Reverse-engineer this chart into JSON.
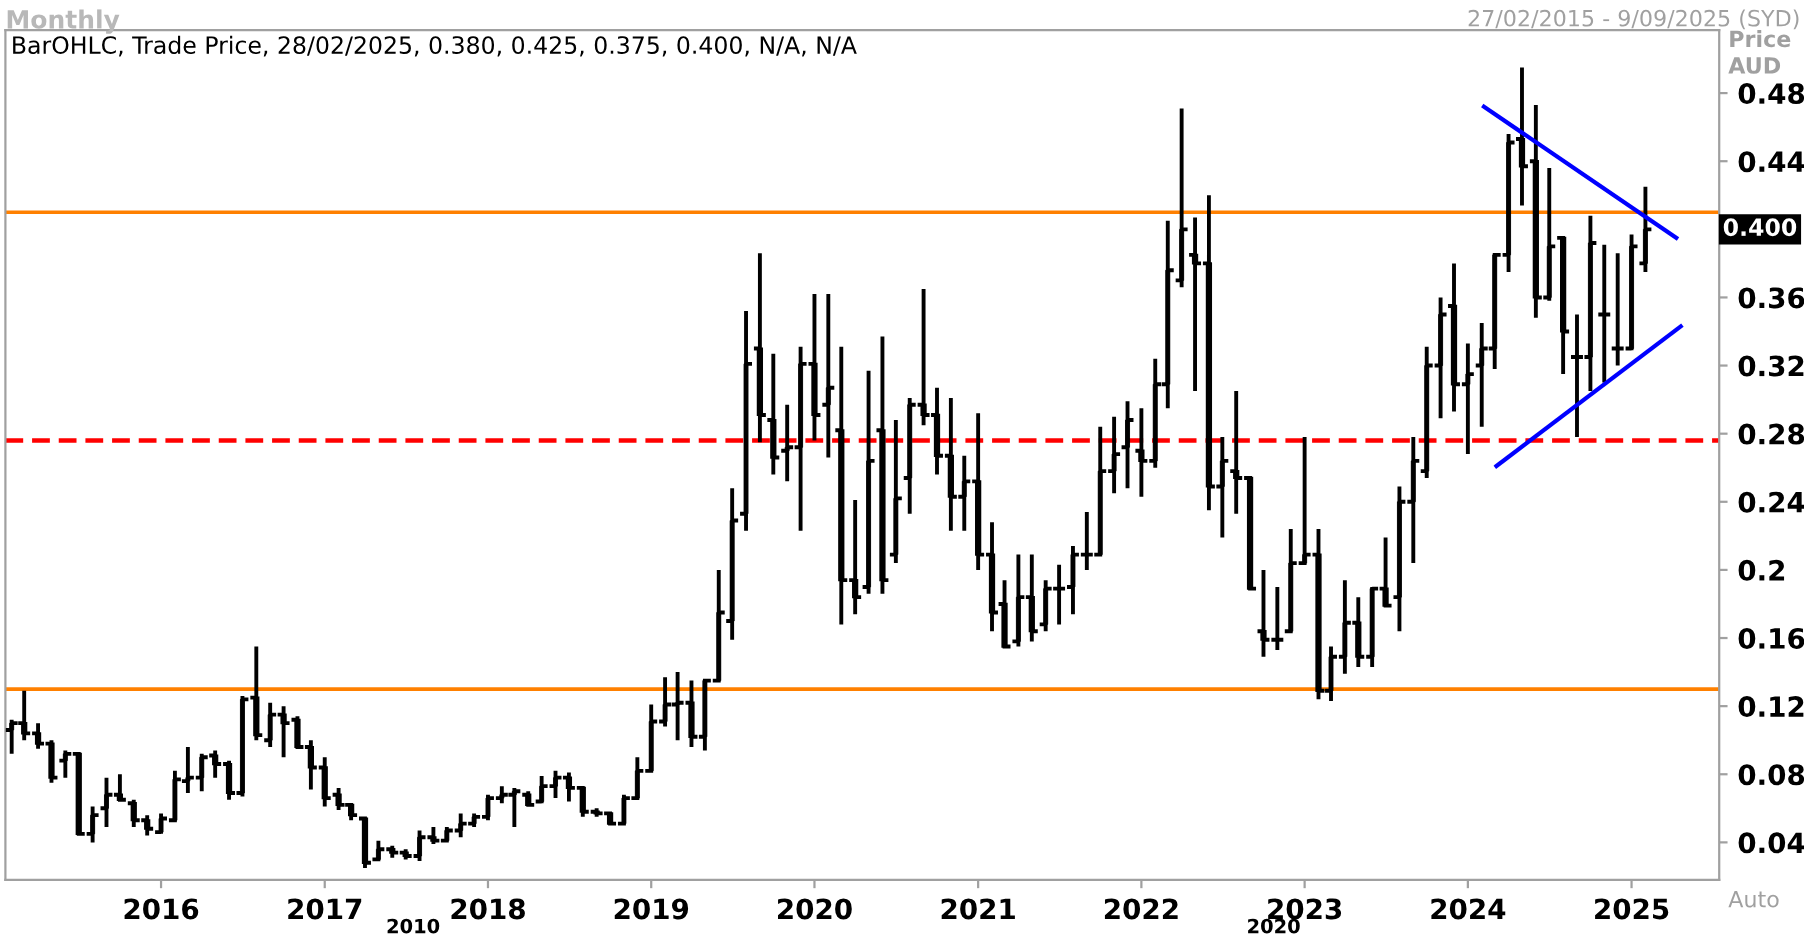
{
  "chart_data": {
    "type": "candlestick",
    "title": "Monthly",
    "subtitle": "BarOHLC, Trade Price, 28/02/2025, 0.380, 0.425, 0.375, 0.400, N/A, N/A",
    "ylabel": "Price\nAUD",
    "color": "#000000",
    "x": [
      "2015-02",
      "2015-03",
      "2015-04",
      "2015-05",
      "2015-06",
      "2015-07",
      "2015-08",
      "2015-09",
      "2015-10",
      "2015-11",
      "2015-12",
      "2016-01",
      "2016-02",
      "2016-03",
      "2016-04",
      "2016-05",
      "2016-06",
      "2016-07",
      "2016-08",
      "2016-09",
      "2016-10",
      "2016-11",
      "2016-12",
      "2017-01",
      "2017-02",
      "2017-03",
      "2017-04",
      "2017-05",
      "2017-06",
      "2017-07",
      "2017-08",
      "2017-09",
      "2017-10",
      "2017-11",
      "2017-12",
      "2018-01",
      "2018-02",
      "2018-03",
      "2018-04",
      "2018-05",
      "2018-06",
      "2018-07",
      "2018-08",
      "2018-09",
      "2018-10",
      "2018-11",
      "2018-12",
      "2019-01",
      "2019-02",
      "2019-03",
      "2019-04",
      "2019-05",
      "2019-06",
      "2019-07",
      "2019-08",
      "2019-09",
      "2019-10",
      "2019-11",
      "2019-12",
      "2020-01",
      "2020-02",
      "2020-03",
      "2020-04",
      "2020-05",
      "2020-06",
      "2020-07",
      "2020-08",
      "2020-09",
      "2020-10",
      "2020-11",
      "2020-12",
      "2021-01",
      "2021-02",
      "2021-03",
      "2021-04",
      "2021-05",
      "2021-06",
      "2021-07",
      "2021-08",
      "2021-09",
      "2021-10",
      "2021-11",
      "2021-12",
      "2022-01",
      "2022-02",
      "2022-03",
      "2022-04",
      "2022-05",
      "2022-06",
      "2022-07",
      "2022-08",
      "2022-09",
      "2022-10",
      "2022-11",
      "2022-12",
      "2023-01",
      "2023-02",
      "2023-03",
      "2023-04",
      "2023-05",
      "2023-06",
      "2023-07",
      "2023-08",
      "2023-09",
      "2023-10",
      "2023-11",
      "2023-12",
      "2024-01",
      "2024-02",
      "2024-03",
      "2024-04",
      "2024-05",
      "2024-06",
      "2024-07",
      "2024-08",
      "2024-09",
      "2024-10",
      "2024-11",
      "2024-12",
      "2025-01",
      "2025-02"
    ],
    "ohlc": [
      [
        0.106,
        0.112,
        0.092,
        0.11
      ],
      [
        0.11,
        0.129,
        0.1,
        0.104
      ],
      [
        0.104,
        0.11,
        0.095,
        0.098
      ],
      [
        0.098,
        0.1,
        0.075,
        0.078
      ],
      [
        0.088,
        0.094,
        0.078,
        0.092
      ],
      [
        0.092,
        0.093,
        0.044,
        0.045
      ],
      [
        0.045,
        0.061,
        0.04,
        0.056
      ],
      [
        0.06,
        0.078,
        0.049,
        0.068
      ],
      [
        0.068,
        0.08,
        0.064,
        0.065
      ],
      [
        0.063,
        0.065,
        0.049,
        0.053
      ],
      [
        0.053,
        0.056,
        0.044,
        0.048
      ],
      [
        0.046,
        0.057,
        0.045,
        0.054
      ],
      [
        0.053,
        0.082,
        0.053,
        0.077
      ],
      [
        0.076,
        0.096,
        0.069,
        0.078
      ],
      [
        0.078,
        0.092,
        0.07,
        0.09
      ],
      [
        0.091,
        0.094,
        0.078,
        0.086
      ],
      [
        0.086,
        0.088,
        0.065,
        0.069
      ],
      [
        0.069,
        0.126,
        0.067,
        0.124
      ],
      [
        0.125,
        0.155,
        0.1,
        0.103
      ],
      [
        0.1,
        0.122,
        0.096,
        0.115
      ],
      [
        0.115,
        0.12,
        0.09,
        0.11
      ],
      [
        0.112,
        0.114,
        0.096,
        0.096
      ],
      [
        0.096,
        0.1,
        0.071,
        0.084
      ],
      [
        0.084,
        0.09,
        0.061,
        0.066
      ],
      [
        0.068,
        0.072,
        0.059,
        0.062
      ],
      [
        0.062,
        0.063,
        0.053,
        0.056
      ],
      [
        0.054,
        0.055,
        0.025,
        0.028
      ],
      [
        0.03,
        0.041,
        0.03,
        0.036
      ],
      [
        0.036,
        0.038,
        0.031,
        0.034
      ],
      [
        0.034,
        0.036,
        0.03,
        0.032
      ],
      [
        0.032,
        0.047,
        0.029,
        0.043
      ],
      [
        0.043,
        0.049,
        0.039,
        0.041
      ],
      [
        0.041,
        0.049,
        0.04,
        0.047
      ],
      [
        0.047,
        0.057,
        0.043,
        0.051
      ],
      [
        0.051,
        0.057,
        0.049,
        0.055
      ],
      [
        0.055,
        0.068,
        0.053,
        0.066
      ],
      [
        0.066,
        0.073,
        0.063,
        0.068
      ],
      [
        0.068,
        0.072,
        0.049,
        0.07
      ],
      [
        0.068,
        0.07,
        0.061,
        0.062
      ],
      [
        0.064,
        0.079,
        0.063,
        0.073
      ],
      [
        0.073,
        0.082,
        0.066,
        0.078
      ],
      [
        0.078,
        0.081,
        0.064,
        0.072
      ],
      [
        0.072,
        0.072,
        0.055,
        0.058
      ],
      [
        0.058,
        0.06,
        0.055,
        0.057
      ],
      [
        0.057,
        0.058,
        0.05,
        0.051
      ],
      [
        0.051,
        0.068,
        0.051,
        0.066
      ],
      [
        0.066,
        0.09,
        0.066,
        0.082
      ],
      [
        0.082,
        0.121,
        0.082,
        0.111
      ],
      [
        0.111,
        0.137,
        0.108,
        0.121
      ],
      [
        0.121,
        0.14,
        0.1,
        0.122
      ],
      [
        0.122,
        0.135,
        0.096,
        0.102
      ],
      [
        0.102,
        0.135,
        0.094,
        0.135
      ],
      [
        0.135,
        0.2,
        0.135,
        0.175
      ],
      [
        0.17,
        0.248,
        0.159,
        0.229
      ],
      [
        0.233,
        0.352,
        0.223,
        0.321
      ],
      [
        0.33,
        0.386,
        0.275,
        0.291
      ],
      [
        0.288,
        0.327,
        0.256,
        0.266
      ],
      [
        0.27,
        0.297,
        0.252,
        0.272
      ],
      [
        0.272,
        0.331,
        0.223,
        0.321
      ],
      [
        0.321,
        0.362,
        0.276,
        0.291
      ],
      [
        0.297,
        0.362,
        0.266,
        0.307
      ],
      [
        0.282,
        0.331,
        0.168,
        0.194
      ],
      [
        0.194,
        0.241,
        0.174,
        0.184
      ],
      [
        0.19,
        0.317,
        0.186,
        0.264
      ],
      [
        0.282,
        0.337,
        0.186,
        0.194
      ],
      [
        0.209,
        0.288,
        0.204,
        0.242
      ],
      [
        0.254,
        0.301,
        0.233,
        0.297
      ],
      [
        0.297,
        0.365,
        0.285,
        0.291
      ],
      [
        0.291,
        0.307,
        0.256,
        0.267
      ],
      [
        0.267,
        0.301,
        0.223,
        0.243
      ],
      [
        0.243,
        0.267,
        0.223,
        0.252
      ],
      [
        0.252,
        0.292,
        0.2,
        0.209
      ],
      [
        0.209,
        0.228,
        0.164,
        0.175
      ],
      [
        0.18,
        0.194,
        0.155,
        0.155
      ],
      [
        0.158,
        0.209,
        0.155,
        0.184
      ],
      [
        0.184,
        0.209,
        0.158,
        0.164
      ],
      [
        0.168,
        0.194,
        0.164,
        0.189
      ],
      [
        0.189,
        0.203,
        0.168,
        0.189
      ],
      [
        0.19,
        0.214,
        0.174,
        0.209
      ],
      [
        0.209,
        0.234,
        0.2,
        0.209
      ],
      [
        0.209,
        0.284,
        0.209,
        0.258
      ],
      [
        0.258,
        0.29,
        0.245,
        0.268
      ],
      [
        0.272,
        0.299,
        0.248,
        0.288
      ],
      [
        0.27,
        0.295,
        0.243,
        0.264
      ],
      [
        0.264,
        0.324,
        0.26,
        0.309
      ],
      [
        0.309,
        0.405,
        0.295,
        0.376
      ],
      [
        0.37,
        0.471,
        0.366,
        0.4
      ],
      [
        0.385,
        0.407,
        0.305,
        0.38
      ],
      [
        0.38,
        0.42,
        0.235,
        0.249
      ],
      [
        0.249,
        0.278,
        0.219,
        0.264
      ],
      [
        0.258,
        0.305,
        0.233,
        0.254
      ],
      [
        0.254,
        0.254,
        0.188,
        0.189
      ],
      [
        0.164,
        0.2,
        0.149,
        0.159
      ],
      [
        0.159,
        0.19,
        0.153,
        0.159
      ],
      [
        0.164,
        0.224,
        0.164,
        0.204
      ],
      [
        0.204,
        0.278,
        0.204,
        0.209
      ],
      [
        0.209,
        0.224,
        0.124,
        0.129
      ],
      [
        0.129,
        0.155,
        0.123,
        0.149
      ],
      [
        0.149,
        0.194,
        0.139,
        0.169
      ],
      [
        0.169,
        0.184,
        0.143,
        0.149
      ],
      [
        0.149,
        0.19,
        0.143,
        0.189
      ],
      [
        0.189,
        0.219,
        0.178,
        0.179
      ],
      [
        0.184,
        0.249,
        0.164,
        0.24
      ],
      [
        0.24,
        0.278,
        0.204,
        0.264
      ],
      [
        0.258,
        0.331,
        0.254,
        0.32
      ],
      [
        0.32,
        0.36,
        0.289,
        0.35
      ],
      [
        0.355,
        0.38,
        0.293,
        0.309
      ],
      [
        0.309,
        0.333,
        0.268,
        0.315
      ],
      [
        0.32,
        0.345,
        0.284,
        0.33
      ],
      [
        0.33,
        0.385,
        0.318,
        0.385
      ],
      [
        0.385,
        0.456,
        0.375,
        0.451
      ],
      [
        0.453,
        0.495,
        0.414,
        0.437
      ],
      [
        0.44,
        0.473,
        0.348,
        0.36
      ],
      [
        0.36,
        0.436,
        0.358,
        0.39
      ],
      [
        0.395,
        0.396,
        0.315,
        0.34
      ],
      [
        0.325,
        0.35,
        0.278,
        0.325
      ],
      [
        0.325,
        0.408,
        0.305,
        0.392
      ],
      [
        0.35,
        0.391,
        0.31,
        0.35
      ],
      [
        0.33,
        0.386,
        0.32,
        0.33
      ],
      [
        0.33,
        0.397,
        0.329,
        0.39
      ],
      [
        0.38,
        0.425,
        0.375,
        0.4
      ]
    ],
    "series": [
      {
        "type": "line",
        "color": "#0000ff",
        "x": [
          "2024-02-06",
          "2025-04-11"
        ],
        "values": [
          0.472,
          0.395
        ]
      },
      {
        "type": "line",
        "color": "#0000ff",
        "x": [
          "2024-03-05",
          "2025-04-21"
        ],
        "values": [
          0.261,
          0.343
        ]
      }
    ],
    "ref_lines": [
      {
        "axis": "y",
        "value": 0.41,
        "color": "#ff8000",
        "line_style": "solid"
      },
      {
        "axis": "y",
        "value": 0.276,
        "color": "#ff0000",
        "line_style": "dashed"
      },
      {
        "axis": "y",
        "value": 0.13,
        "color": "#ff8000",
        "line_style": "solid"
      }
    ],
    "xlim": [
      "2015-01-18",
      "2025-07-16"
    ],
    "xticks": [
      "2016",
      "2017",
      "2018",
      "2019",
      "2020",
      "2021",
      "2022",
      "2023",
      "2024",
      "2025"
    ],
    "ylim": [
      0.018,
      0.517
    ],
    "yticks": [
      0.04,
      0.08,
      0.12,
      0.16,
      0.2,
      0.24,
      0.28,
      0.32,
      0.36,
      0.44,
      0.48
    ],
    "annotations": [
      "0.400",
      "27/02/2015 - 9/09/2025 (SYD)",
      "Auto",
      "2010",
      "2020"
    ],
    "grid": false
  }
}
